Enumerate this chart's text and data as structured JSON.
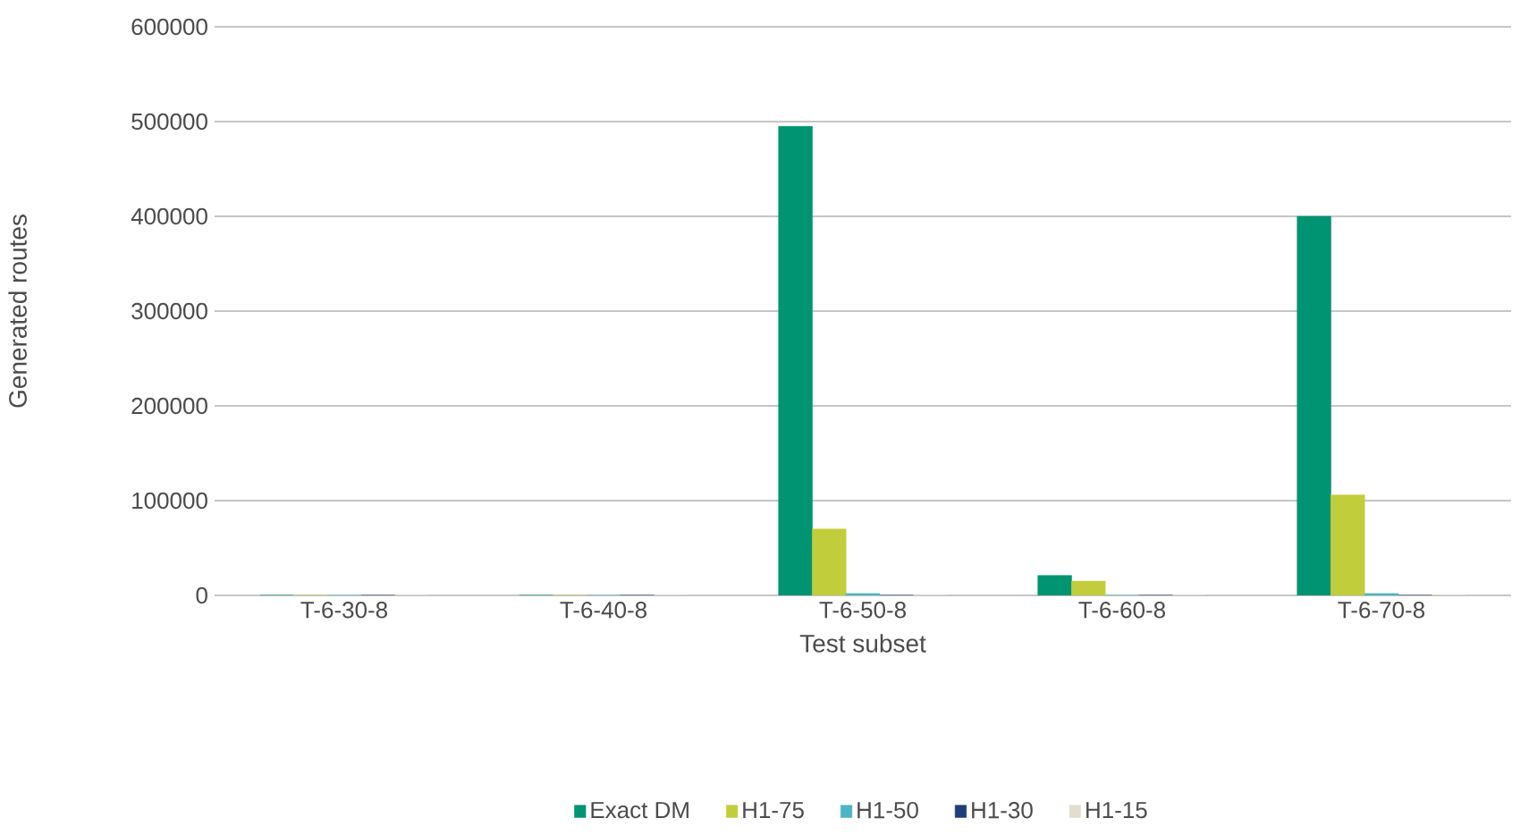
{
  "chart_data": {
    "type": "bar",
    "xlabel": "Test subset",
    "ylabel": "Generated routes",
    "categories": [
      "T-6-30-8",
      "T-6-40-8",
      "T-6-50-8",
      "T-6-60-8",
      "T-6-70-8"
    ],
    "series": [
      {
        "name": "Exact DM",
        "color": "#009473",
        "values": [
          0,
          0,
          495000,
          21000,
          400000
        ]
      },
      {
        "name": "H1-75",
        "color": "#c2cd3c",
        "values": [
          0,
          0,
          70000,
          15000,
          106000
        ]
      },
      {
        "name": "H1-50",
        "color": "#4ab5c4",
        "values": [
          0,
          0,
          2000,
          0,
          2000
        ]
      },
      {
        "name": "H1-30",
        "color": "#1f3f7a",
        "values": [
          0,
          0,
          0,
          0,
          0
        ]
      },
      {
        "name": "H1-15",
        "color": "#e3ddd0",
        "values": [
          0,
          0,
          0,
          0,
          0
        ]
      }
    ],
    "ylim": [
      0,
      600000
    ],
    "yticks": [
      0,
      100000,
      200000,
      300000,
      400000,
      500000,
      600000
    ],
    "grid": "y",
    "legend": "bottom"
  }
}
